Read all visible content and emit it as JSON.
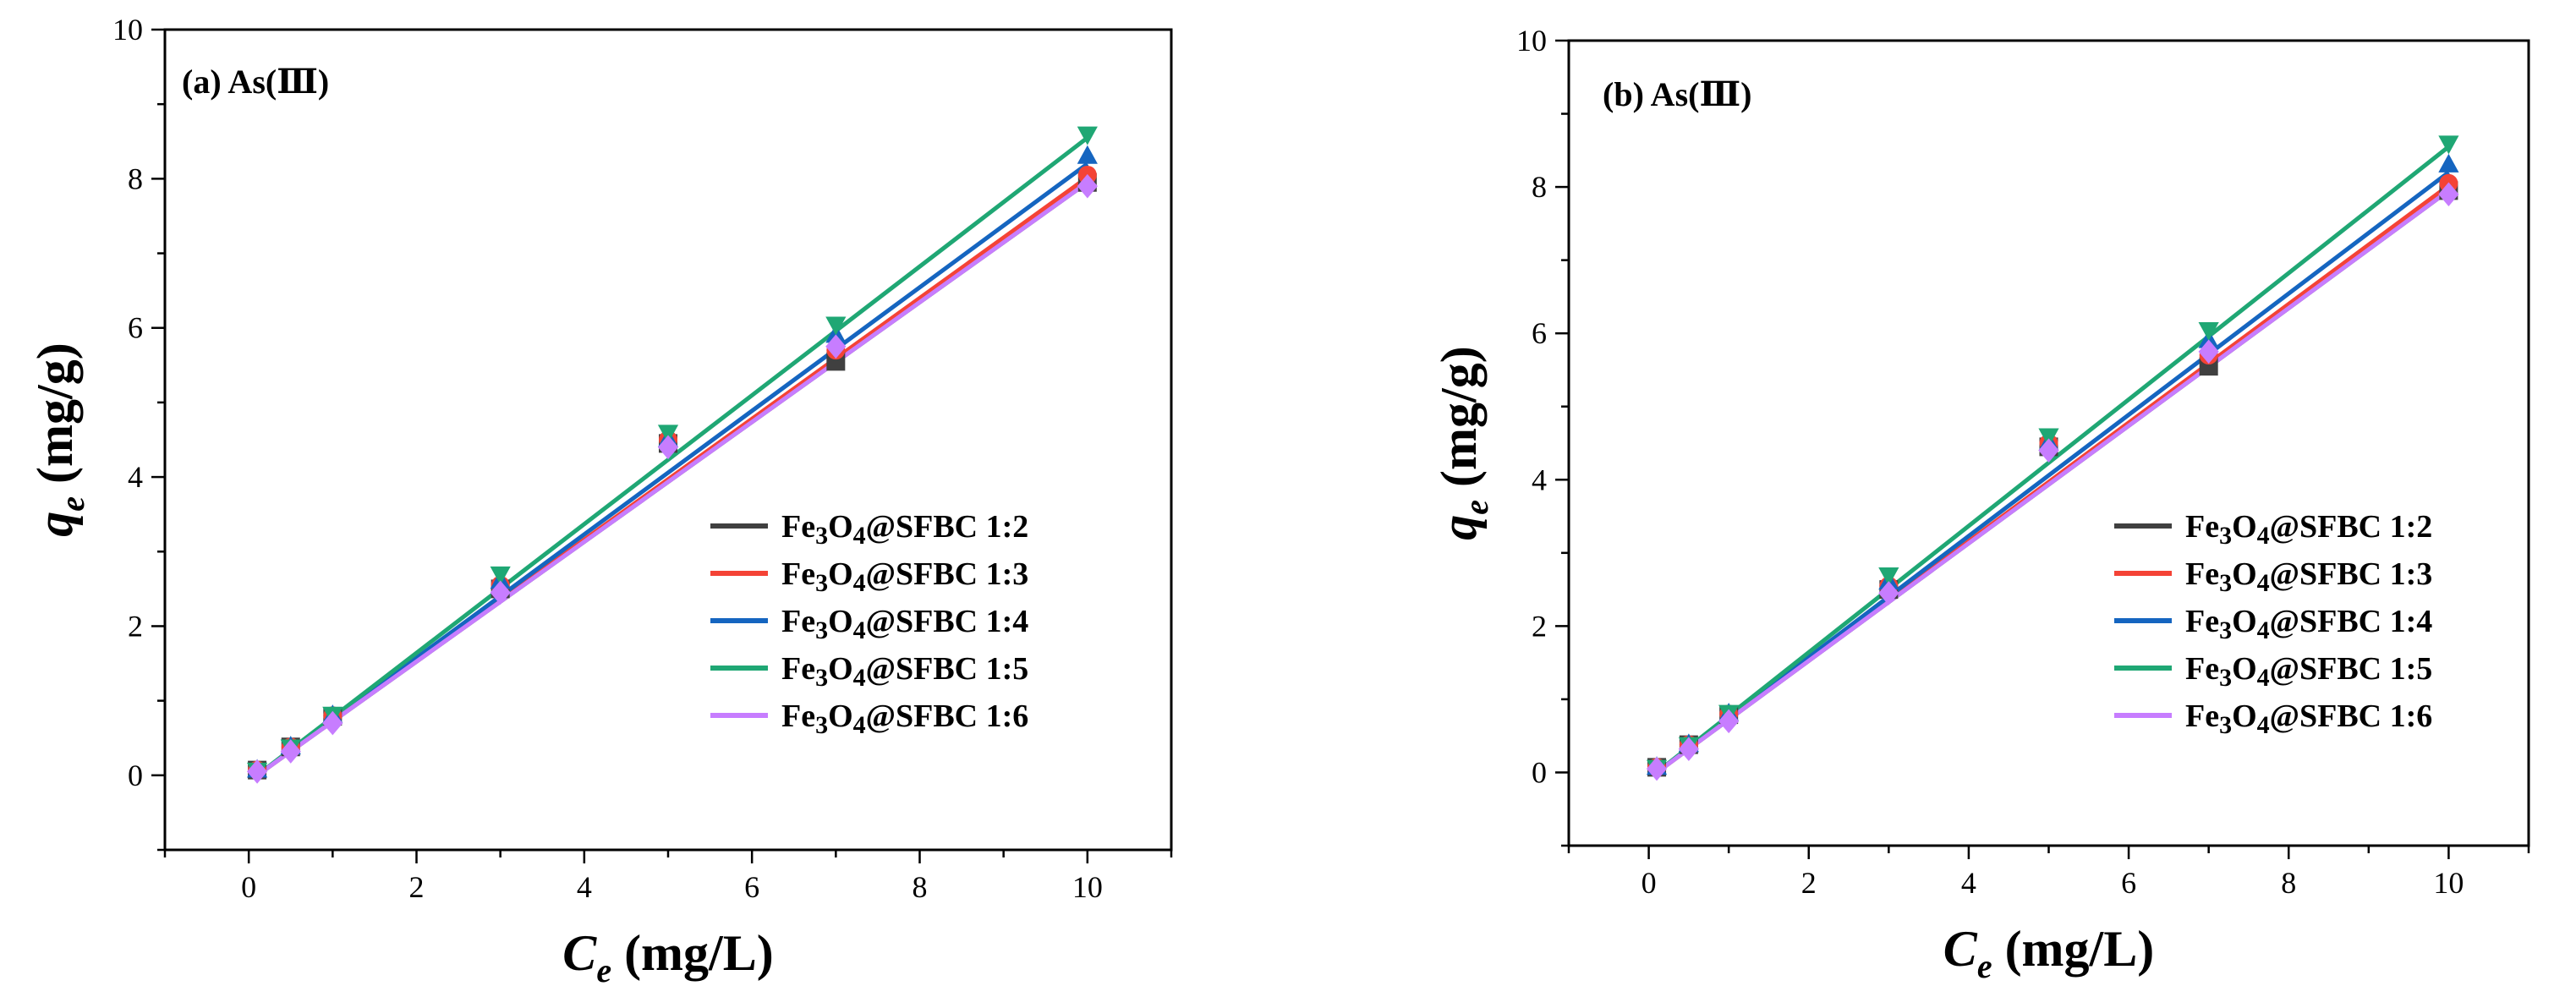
{
  "chart_data": [
    {
      "type": "scatter",
      "panel_label": "(a) As(Ⅲ)",
      "xlabel": "C_e (mg/L)",
      "ylabel": "q_e (mg/g)",
      "xlim": [
        -1,
        11
      ],
      "ylim": [
        -1,
        10
      ],
      "xticks": [
        0,
        2,
        4,
        6,
        8,
        10
      ],
      "yticks": [
        0,
        2,
        4,
        6,
        8,
        10
      ],
      "legend_position": "lower-right",
      "x": [
        0.1,
        0.5,
        1,
        3,
        5,
        7,
        10
      ],
      "series": [
        {
          "name": "Fe3O4@SFBC 1:2",
          "color": "#404040",
          "marker": "square",
          "values": [
            0.07,
            0.38,
            0.79,
            2.5,
            4.45,
            5.55,
            7.95
          ]
        },
        {
          "name": "Fe3O4@SFBC 1:3",
          "color": "#f44336",
          "marker": "circle",
          "values": [
            0.07,
            0.38,
            0.8,
            2.55,
            4.5,
            5.7,
            8.05
          ]
        },
        {
          "name": "Fe3O4@SFBC 1:4",
          "color": "#1565c0",
          "marker": "triangle-up",
          "values": [
            0.07,
            0.38,
            0.8,
            2.6,
            4.5,
            5.9,
            8.3
          ]
        },
        {
          "name": "Fe3O4@SFBC 1:5",
          "color": "#1fa774",
          "marker": "triangle-down",
          "values": [
            0.07,
            0.38,
            0.82,
            2.7,
            4.6,
            6.05,
            8.6
          ]
        },
        {
          "name": "Fe3O4@SFBC 1:6",
          "color": "#c77dff",
          "marker": "diamond",
          "values": [
            0.05,
            0.32,
            0.7,
            2.45,
            4.4,
            5.75,
            7.9
          ]
        }
      ],
      "fit_lines": [
        {
          "name": "Fe3O4@SFBC 1:2",
          "y0": 0.0,
          "y1": 7.95
        },
        {
          "name": "Fe3O4@SFBC 1:3",
          "y0": 0.0,
          "y1": 8.02
        },
        {
          "name": "Fe3O4@SFBC 1:4",
          "y0": 0.0,
          "y1": 8.2
        },
        {
          "name": "Fe3O4@SFBC 1:5",
          "y0": 0.0,
          "y1": 8.55
        },
        {
          "name": "Fe3O4@SFBC 1:6",
          "y0": 0.0,
          "y1": 7.95
        }
      ]
    },
    {
      "type": "scatter",
      "panel_label": "(b) As(Ⅲ)",
      "xlabel": "C_e (mg/L)",
      "ylabel": "q_e (mg/g)",
      "xlim": [
        -1,
        11
      ],
      "ylim": [
        -1,
        10
      ],
      "xticks": [
        0,
        2,
        4,
        6,
        8,
        10
      ],
      "yticks": [
        0,
        2,
        4,
        6,
        8,
        10
      ],
      "legend_position": "lower-right",
      "x": [
        0.1,
        0.5,
        1,
        3,
        5,
        7,
        10
      ],
      "series": [
        {
          "name": "Fe3O4@SFBC 1:2",
          "color": "#404040",
          "marker": "square",
          "values": [
            0.07,
            0.38,
            0.79,
            2.5,
            4.45,
            5.55,
            7.95
          ]
        },
        {
          "name": "Fe3O4@SFBC 1:3",
          "color": "#f44336",
          "marker": "circle",
          "values": [
            0.07,
            0.38,
            0.8,
            2.55,
            4.5,
            5.7,
            8.05
          ]
        },
        {
          "name": "Fe3O4@SFBC 1:4",
          "color": "#1565c0",
          "marker": "triangle-up",
          "values": [
            0.07,
            0.38,
            0.8,
            2.6,
            4.5,
            5.9,
            8.3
          ]
        },
        {
          "name": "Fe3O4@SFBC 1:5",
          "color": "#1fa774",
          "marker": "triangle-down",
          "values": [
            0.07,
            0.38,
            0.82,
            2.7,
            4.6,
            6.05,
            8.6
          ]
        },
        {
          "name": "Fe3O4@SFBC 1:6",
          "color": "#c77dff",
          "marker": "diamond",
          "values": [
            0.05,
            0.32,
            0.7,
            2.45,
            4.4,
            5.75,
            7.9
          ]
        }
      ],
      "fit_lines": [
        {
          "name": "Fe3O4@SFBC 1:2",
          "y0": 0.0,
          "y1": 7.95
        },
        {
          "name": "Fe3O4@SFBC 1:3",
          "y0": 0.0,
          "y1": 8.02
        },
        {
          "name": "Fe3O4@SFBC 1:4",
          "y0": 0.0,
          "y1": 8.2
        },
        {
          "name": "Fe3O4@SFBC 1:5",
          "y0": 0.0,
          "y1": 8.55
        },
        {
          "name": "Fe3O4@SFBC 1:6",
          "y0": 0.0,
          "y1": 7.95
        }
      ]
    }
  ]
}
